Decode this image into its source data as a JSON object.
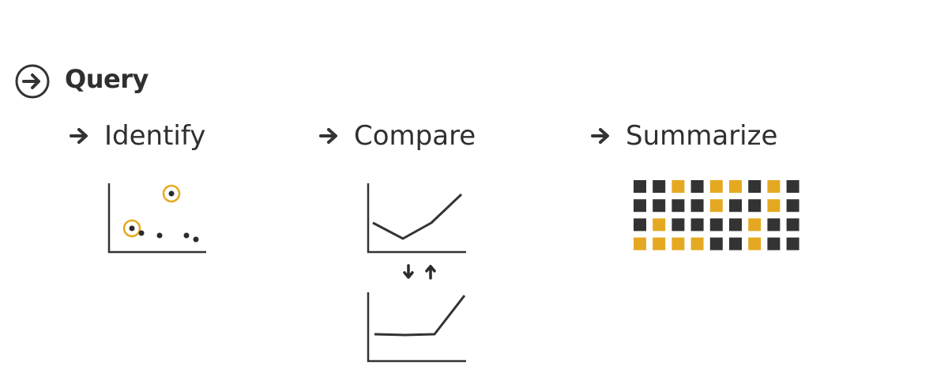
{
  "title": "Query",
  "sections": {
    "identify": {
      "label": "Identify"
    },
    "compare": {
      "label": "Compare"
    },
    "summarize": {
      "label": "Summarize"
    }
  },
  "colors": {
    "ink": "#333333",
    "highlight": "#e5a921"
  },
  "icons": {
    "title": "circled-right-arrow-icon",
    "heading": "right-arrow-icon",
    "swap": "down-up-arrows-icon"
  },
  "summarize_grid": {
    "rows": [
      [
        0,
        0,
        1,
        0,
        1,
        1,
        0,
        1,
        0
      ],
      [
        0,
        0,
        0,
        0,
        1,
        0,
        0,
        1,
        0
      ],
      [
        0,
        1,
        0,
        0,
        0,
        0,
        1,
        0,
        0
      ],
      [
        1,
        1,
        1,
        1,
        0,
        0,
        1,
        0,
        0
      ]
    ]
  }
}
